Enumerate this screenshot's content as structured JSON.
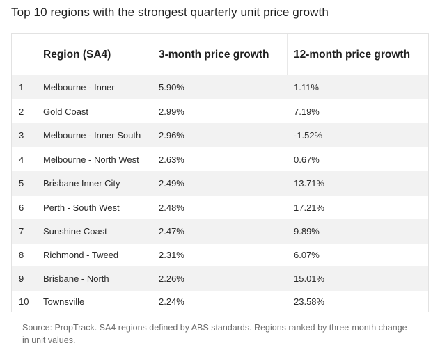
{
  "title": "Top 10 regions with the strongest quarterly unit price growth",
  "columns": [
    "",
    "Region (SA4)",
    "3-month price growth",
    "12-month price growth"
  ],
  "rows": [
    {
      "rank": "1",
      "region": "Melbourne - Inner",
      "three_month": "5.90%",
      "twelve_month": "1.11%"
    },
    {
      "rank": "2",
      "region": "Gold Coast",
      "three_month": "2.99%",
      "twelve_month": "7.19%"
    },
    {
      "rank": "3",
      "region": "Melbourne - Inner South",
      "three_month": "2.96%",
      "twelve_month": "-1.52%"
    },
    {
      "rank": "4",
      "region": "Melbourne - North West",
      "three_month": "2.63%",
      "twelve_month": "0.67%"
    },
    {
      "rank": "5",
      "region": "Brisbane Inner City",
      "three_month": "2.49%",
      "twelve_month": "13.71%"
    },
    {
      "rank": "6",
      "region": "Perth - South West",
      "three_month": "2.48%",
      "twelve_month": "17.21%"
    },
    {
      "rank": "7",
      "region": "Sunshine Coast",
      "three_month": "2.47%",
      "twelve_month": "9.89%"
    },
    {
      "rank": "8",
      "region": "Richmond - Tweed",
      "three_month": "2.31%",
      "twelve_month": "6.07%"
    },
    {
      "rank": "9",
      "region": "Brisbane - North",
      "three_month": "2.26%",
      "twelve_month": "15.01%"
    },
    {
      "rank": "10",
      "region": "Townsville",
      "three_month": "2.24%",
      "twelve_month": "23.58%"
    }
  ],
  "source": "Source: PropTrack. SA4 regions defined by ABS standards. Regions ranked by three-month change in unit values.",
  "colors": {
    "stripe": "#f2f2f2",
    "border": "#e2e2e2",
    "text": "#1f1f1f",
    "muted": "#6b6b6b"
  }
}
